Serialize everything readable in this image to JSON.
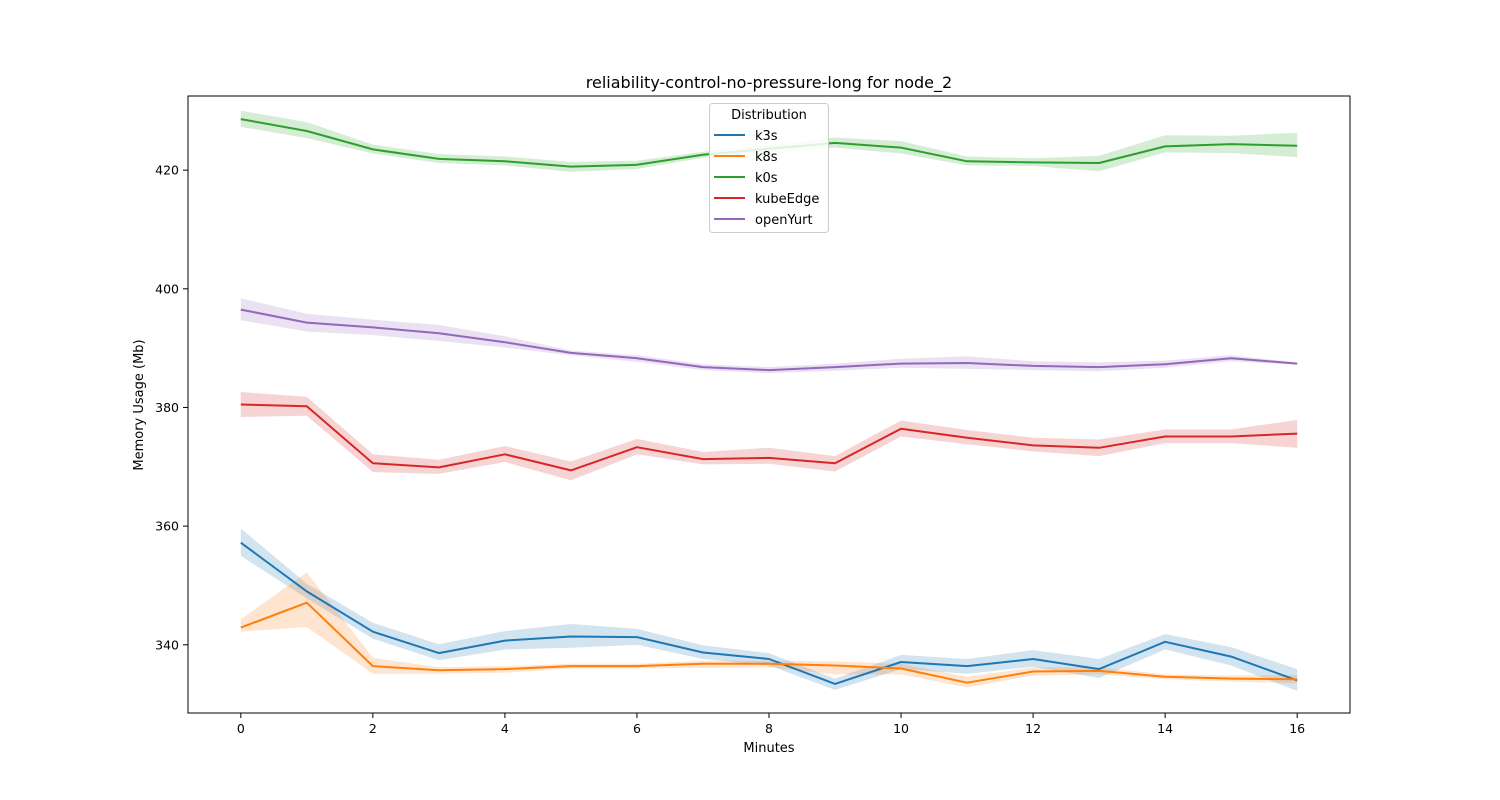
{
  "chart_data": {
    "type": "line",
    "title": "reliability-control-no-pressure-long for node_2",
    "xlabel": "Minutes",
    "ylabel": "Memory Usage (Mb)",
    "xlim": [
      -0.8,
      16.8
    ],
    "ylim": [
      328.5,
      432.5
    ],
    "xticks": [
      0,
      2,
      4,
      6,
      8,
      10,
      12,
      14,
      16
    ],
    "yticks": [
      340,
      360,
      380,
      400,
      420
    ],
    "grid": false,
    "legend": {
      "title": "Distribution",
      "placement": "upper center"
    },
    "x": [
      0,
      1,
      2,
      3,
      4,
      5,
      6,
      7,
      8,
      9,
      10,
      11,
      12,
      13,
      14,
      15,
      16
    ],
    "series": [
      {
        "name": "k3s",
        "color": "#1f77b4",
        "values": [
          357.2,
          349.0,
          342.2,
          338.6,
          340.7,
          341.4,
          341.3,
          338.7,
          337.6,
          333.4,
          337.1,
          336.4,
          337.6,
          335.9,
          340.5,
          338.0,
          334.0
        ],
        "lower": [
          355.0,
          347.8,
          341.0,
          337.4,
          339.2,
          339.5,
          340.0,
          337.6,
          336.5,
          332.4,
          335.9,
          335.1,
          336.3,
          334.4,
          339.2,
          336.5,
          332.2
        ],
        "upper": [
          359.6,
          350.3,
          343.7,
          340.1,
          342.3,
          343.5,
          342.7,
          339.9,
          338.6,
          334.3,
          338.3,
          337.6,
          339.1,
          337.6,
          341.8,
          339.6,
          335.9
        ]
      },
      {
        "name": "k8s",
        "color": "#ff7f0e",
        "values": [
          342.9,
          347.1,
          336.4,
          335.7,
          335.9,
          336.4,
          336.4,
          336.8,
          336.8,
          336.5,
          336.0,
          333.6,
          335.5,
          335.6,
          334.6,
          334.3,
          334.2
        ],
        "lower": [
          342.2,
          343.0,
          335.1,
          335.1,
          335.3,
          336.0,
          336.0,
          336.1,
          336.2,
          335.0,
          335.0,
          332.8,
          334.8,
          335.0,
          334.2,
          333.8,
          333.5
        ],
        "upper": [
          344.3,
          352.2,
          337.8,
          336.2,
          336.4,
          336.8,
          336.8,
          337.3,
          337.3,
          337.2,
          336.8,
          334.6,
          336.2,
          336.2,
          335.0,
          334.8,
          334.9
        ]
      },
      {
        "name": "k0s",
        "color": "#2ca02c",
        "values": [
          428.6,
          426.6,
          423.5,
          421.9,
          421.5,
          420.6,
          420.9,
          422.6,
          423.6,
          424.6,
          423.8,
          421.5,
          421.3,
          421.2,
          424.0,
          424.4,
          424.1
        ],
        "lower": [
          427.3,
          425.4,
          422.8,
          421.2,
          420.8,
          419.7,
          420.2,
          422.1,
          423.0,
          423.8,
          422.8,
          420.8,
          420.7,
          419.8,
          423.0,
          422.9,
          422.2
        ],
        "upper": [
          430.0,
          428.1,
          424.3,
          422.7,
          422.3,
          421.4,
          421.6,
          423.1,
          424.2,
          425.5,
          424.9,
          422.3,
          422.0,
          422.4,
          425.9,
          425.8,
          426.3
        ]
      },
      {
        "name": "kubeEdge",
        "color": "#d62728",
        "values": [
          380.5,
          380.2,
          370.6,
          369.9,
          372.1,
          369.4,
          373.3,
          371.3,
          371.5,
          370.6,
          376.4,
          374.9,
          373.6,
          373.2,
          375.1,
          375.1,
          375.6
        ],
        "lower": [
          378.4,
          378.6,
          369.1,
          368.8,
          370.8,
          367.7,
          372.1,
          370.4,
          370.5,
          369.2,
          375.1,
          373.8,
          372.6,
          371.8,
          374.0,
          374.0,
          373.2
        ],
        "upper": [
          382.6,
          381.8,
          372.1,
          371.2,
          373.5,
          370.9,
          374.7,
          372.5,
          373.2,
          371.8,
          377.8,
          376.2,
          374.9,
          374.6,
          376.3,
          376.3,
          377.9
        ]
      },
      {
        "name": "openYurt",
        "color": "#9467bd",
        "values": [
          396.5,
          394.3,
          393.5,
          392.5,
          391.0,
          389.2,
          388.3,
          386.8,
          386.3,
          386.8,
          387.4,
          387.5,
          387.0,
          386.8,
          387.3,
          388.3,
          387.4
        ],
        "lower": [
          394.7,
          392.8,
          392.2,
          391.2,
          390.1,
          388.8,
          387.7,
          386.3,
          385.8,
          386.2,
          386.7,
          386.5,
          386.3,
          386.1,
          386.7,
          387.8,
          387.2
        ],
        "upper": [
          398.4,
          395.8,
          394.8,
          393.9,
          392.0,
          389.6,
          388.8,
          387.3,
          386.8,
          387.4,
          388.2,
          388.6,
          387.8,
          387.6,
          387.9,
          388.8,
          387.6
        ]
      }
    ]
  }
}
